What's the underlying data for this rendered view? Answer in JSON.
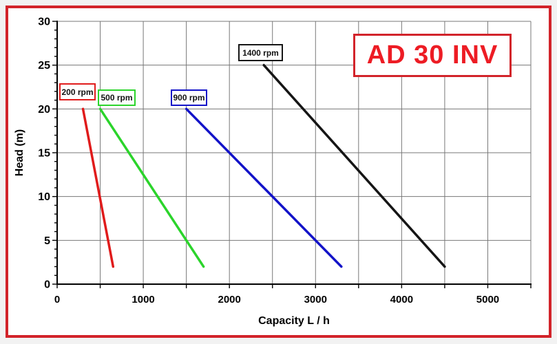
{
  "frame": {
    "border_color": "#d2232a",
    "background": "#ffffff",
    "page_background": "#f2f2f2"
  },
  "title": {
    "text": "AD 30 INV",
    "color": "#ed1c24",
    "border_color": "#d2232a"
  },
  "chart_data": {
    "type": "line",
    "title": "AD 30 INV",
    "xlabel": "Capacity  L / h",
    "ylabel": "Head (m)",
    "xlim": [
      0,
      5500
    ],
    "ylim": [
      0,
      30
    ],
    "x_tick_labels": [
      0,
      1000,
      2000,
      3000,
      4000,
      5000
    ],
    "x_grid_step": 500,
    "y_tick_labels": [
      0,
      5,
      10,
      15,
      20,
      25,
      30
    ],
    "y_minor_tick_step": 1,
    "grid": true,
    "grid_color": "#777777",
    "axis_color": "#000000",
    "legend_position": "labels-on-chart",
    "series": [
      {
        "name": "200 rpm",
        "color": "#e01b1b",
        "points": [
          [
            300,
            20
          ],
          [
            650,
            2
          ]
        ]
      },
      {
        "name": "500 rpm",
        "color": "#2bd42b",
        "points": [
          [
            500,
            20
          ],
          [
            1700,
            2
          ]
        ]
      },
      {
        "name": "900 rpm",
        "color": "#1212c8",
        "points": [
          [
            1500,
            20
          ],
          [
            3300,
            2
          ]
        ]
      },
      {
        "name": "1400 rpm",
        "color": "#151515",
        "points": [
          [
            2400,
            25
          ],
          [
            4500,
            2
          ]
        ]
      }
    ]
  }
}
